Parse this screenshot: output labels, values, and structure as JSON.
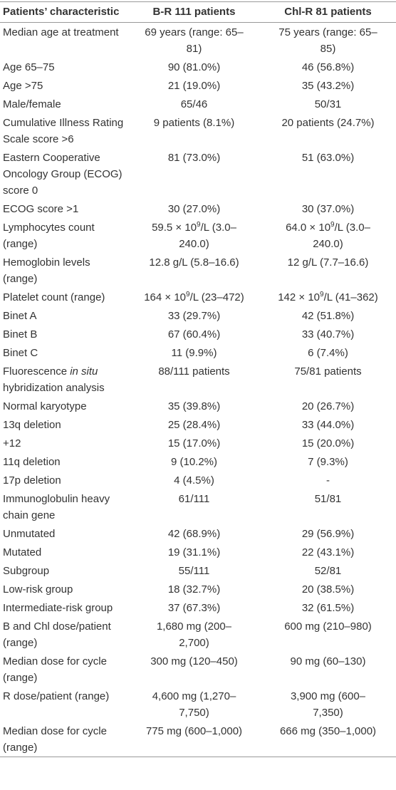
{
  "table": {
    "header": [
      "Patients’ characteristic",
      "B-R 111 patients",
      "Chl-R 81 patients"
    ],
    "rows": [
      [
        "Median age at treatment",
        "69 years (range: 65–81)",
        "75 years (range: 65–85)"
      ],
      [
        "Age 65–75",
        "90 (81.0%)",
        "46 (56.8%)"
      ],
      [
        "Age >75",
        "21 (19.0%)",
        "35 (43.2%)"
      ],
      [
        "Male/female",
        "65/46",
        "50/31"
      ],
      [
        "Cumulative Illness Rating Scale score >6",
        "9 patients (8.1%)",
        "20 patients (24.7%)"
      ],
      [
        "Eastern Cooperative Oncology Group (ECOG) score 0",
        "81 (73.0%)",
        "51 (63.0%)"
      ],
      [
        "ECOG score >1",
        "30 (27.0%)",
        "30 (37.0%)"
      ],
      [
        "Lymphocytes count (range)",
        [
          {
            "text": "59.5 × 10"
          },
          {
            "sup": "9"
          },
          {
            "text": "/L (3.0–240.0)"
          }
        ],
        [
          {
            "text": "64.0 × 10"
          },
          {
            "sup": "9"
          },
          {
            "text": "/L (3.0–240.0)"
          }
        ]
      ],
      [
        "Hemoglobin levels (range)",
        "12.8 g/L (5.8–16.6)",
        "12 g/L (7.7–16.6)"
      ],
      [
        "Platelet count (range)",
        [
          {
            "text": "164 × 10"
          },
          {
            "sup": "9"
          },
          {
            "text": "/L (23–472)"
          }
        ],
        [
          {
            "text": "142 × 10"
          },
          {
            "sup": "9"
          },
          {
            "text": "/L (41–362)"
          }
        ]
      ],
      [
        "Binet A",
        "33 (29.7%)",
        "42 (51.8%)"
      ],
      [
        "Binet B",
        "67 (60.4%)",
        "33 (40.7%)"
      ],
      [
        "Binet C",
        "11 (9.9%)",
        "6 (7.4%)"
      ],
      [
        [
          {
            "text": "Fluorescence "
          },
          {
            "em": "in situ"
          },
          {
            "text": " hybridization analysis"
          }
        ],
        "88/111 patients",
        "75/81 patients"
      ],
      [
        "Normal karyotype",
        "35 (39.8%)",
        "20 (26.7%)"
      ],
      [
        "13q deletion",
        "25 (28.4%)",
        "33 (44.0%)"
      ],
      [
        "+12",
        "15 (17.0%)",
        "15 (20.0%)"
      ],
      [
        "11q deletion",
        "9 (10.2%)",
        "7 (9.3%)"
      ],
      [
        "17p deletion",
        "4 (4.5%)",
        "-"
      ],
      [
        "Immunoglobulin heavy chain gene",
        "61/111",
        "51/81"
      ],
      [
        "Unmutated",
        "42 (68.9%)",
        "29 (56.9%)"
      ],
      [
        "Mutated",
        "19 (31.1%)",
        "22 (43.1%)"
      ],
      [
        "Subgroup",
        "55/111",
        "52/81"
      ],
      [
        "Low-risk group",
        "18 (32.7%)",
        "20 (38.5%)"
      ],
      [
        "Intermediate-risk group",
        "37 (67.3%)",
        "32 (61.5%)"
      ],
      [
        "B and Chl dose/patient (range)",
        "1,680 mg (200–2,700)",
        "600 mg (210–980)"
      ],
      [
        "Median dose for cycle (range)",
        "300 mg (120–450)",
        "90 mg (60–130)"
      ],
      [
        "R dose/patient (range)",
        "4,600 mg (1,270–7,750)",
        "3,900 mg (600–7,350)"
      ],
      [
        "Median dose for cycle (range)",
        "775 mg (600–1,000)",
        "666 mg (350–1,000)"
      ]
    ]
  }
}
